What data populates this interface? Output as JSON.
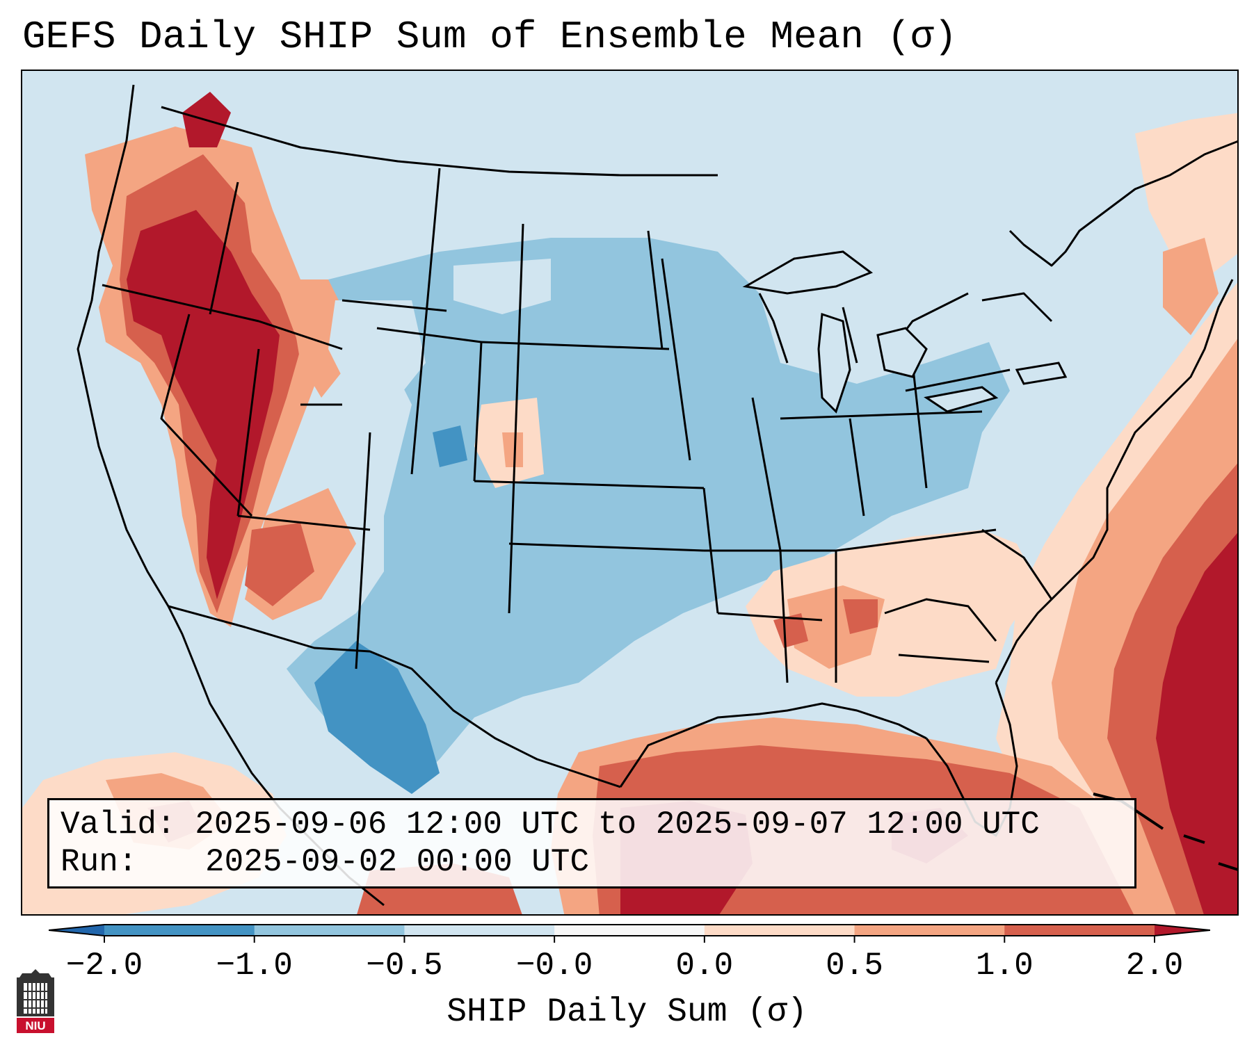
{
  "title": "GEFS Daily SHIP Sum of Ensemble Mean (σ)",
  "info": {
    "valid_label": "Valid:",
    "valid_value": "2025-09-06 12:00 UTC to 2025-09-07 12:00 UTC",
    "run_label": "Run:",
    "run_value": "2025-09-02 00:00 UTC"
  },
  "colorbar": {
    "label": "SHIP Daily Sum (σ)",
    "ticks": [
      "−2.0",
      "−1.0",
      "−0.5",
      "−0.0",
      "0.0",
      "0.5",
      "1.0",
      "2.0"
    ],
    "colors": [
      "#4393c3",
      "#92c5de",
      "#d1e5f0",
      "#f7f7f7",
      "#fddbc7",
      "#f4a582",
      "#d6604d"
    ],
    "under_color": "#2166ac",
    "over_color": "#b2182b"
  },
  "logo": {
    "text": "NIU",
    "name": "Northern Illinois University"
  },
  "map": {
    "region": "Contiguous United States",
    "field": "SHIP daily sum anomaly"
  }
}
